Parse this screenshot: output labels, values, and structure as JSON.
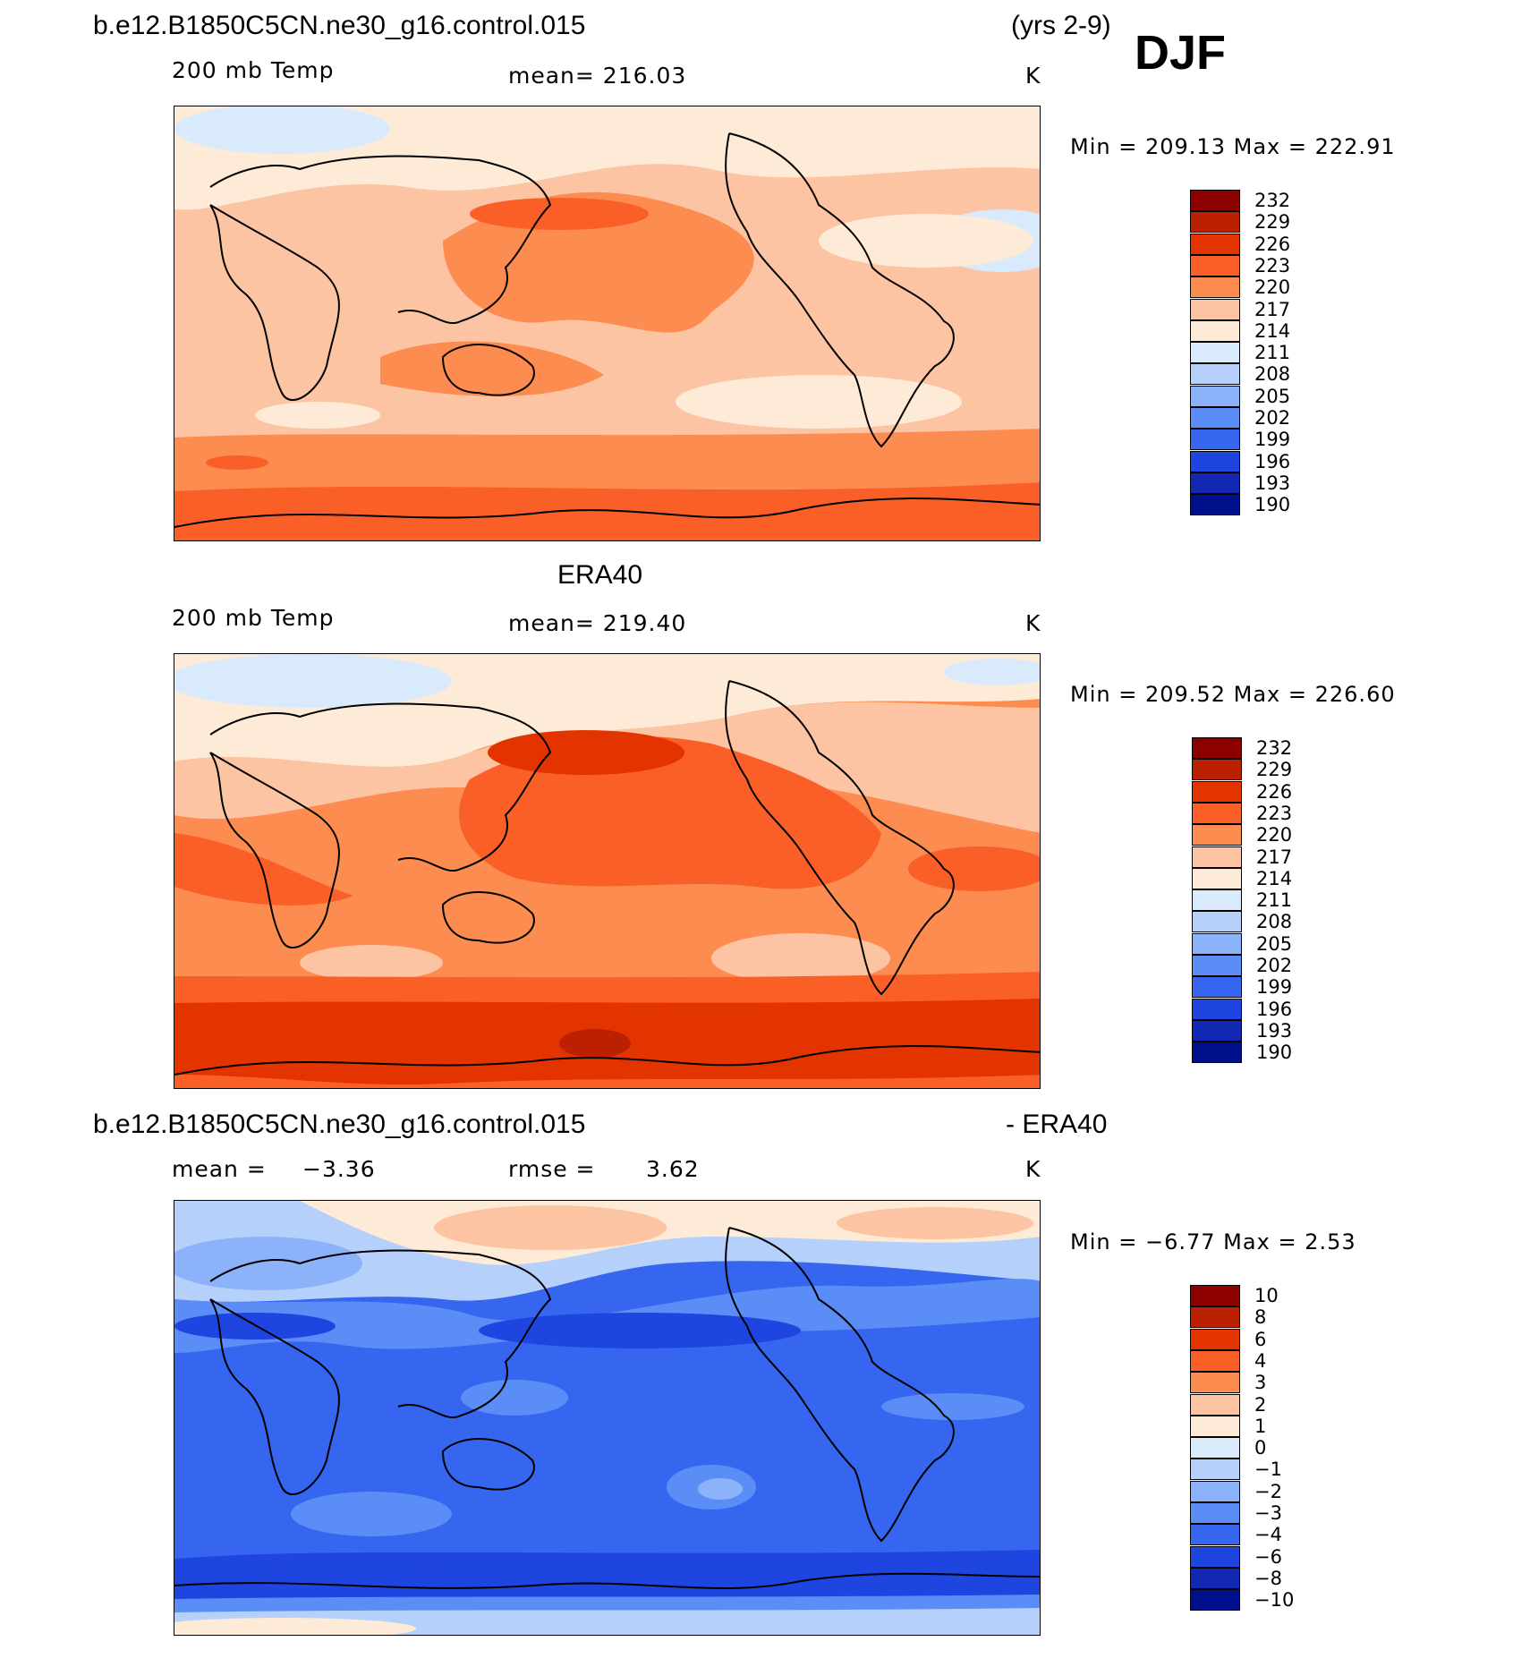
{
  "header": {
    "case_name": "b.e12.B1850C5CN.ne30_g16.control.015",
    "years": "(yrs 2-9)",
    "season": "DJF"
  },
  "panels": [
    {
      "id": "model",
      "title": "",
      "field_label": "200 mb Temp",
      "stat_text": "mean= 216.03",
      "units": "K",
      "min_label": "Min",
      "min_value": "209.13",
      "max_label": "Max",
      "max_value": "222.91",
      "colorbar": {
        "colors": [
          "#8c0000",
          "#bb2000",
          "#e33400",
          "#fa5f28",
          "#fd8c50",
          "#fdc4a3",
          "#fdebd8",
          "#d9eafc",
          "#b5d1fb",
          "#8cb3fa",
          "#5a8df5",
          "#3666ef",
          "#1f45e0",
          "#1227b2",
          "#000f8c"
        ],
        "tick_labels": [
          "232",
          "229",
          "226",
          "223",
          "220",
          "217",
          "214",
          "211",
          "208",
          "205",
          "202",
          "199",
          "196",
          "193",
          "190"
        ]
      },
      "fill_colors": {
        "background": "#fdc4a3",
        "warm": "#fd8c50",
        "warmer": "#fa5f28",
        "cool": "#fdebd8",
        "cold": "#d9eafc"
      }
    },
    {
      "id": "obs",
      "title": "ERA40",
      "field_label": "200 mb Temp",
      "stat_text": "mean= 219.40",
      "units": "K",
      "min_label": "Min",
      "min_value": "209.52",
      "max_label": "Max",
      "max_value": "226.60",
      "colorbar": {
        "colors": [
          "#8c0000",
          "#bb2000",
          "#e33400",
          "#fa5f28",
          "#fd8c50",
          "#fdc4a3",
          "#fdebd8",
          "#d9eafc",
          "#b5d1fb",
          "#8cb3fa",
          "#5a8df5",
          "#3666ef",
          "#1f45e0",
          "#1227b2",
          "#000f8c"
        ],
        "tick_labels": [
          "232",
          "229",
          "226",
          "223",
          "220",
          "217",
          "214",
          "211",
          "208",
          "205",
          "202",
          "199",
          "196",
          "193",
          "190"
        ]
      },
      "fill_colors": {
        "background": "#fd8c50",
        "warm": "#fa5f28",
        "warmer": "#e33400",
        "cool": "#fdebd8",
        "cold": "#d9eafc"
      }
    },
    {
      "id": "diff",
      "title_left": "b.e12.B1850C5CN.ne30_g16.control.015",
      "title_right": "- ERA40",
      "stat_mean_label": "mean =",
      "stat_mean_value": "−3.36",
      "stat_rmse_label": "rmse =",
      "stat_rmse_value": "3.62",
      "units": "K",
      "min_label": "Min",
      "min_value": "−6.77",
      "max_label": "Max",
      "max_value": "2.53",
      "colorbar": {
        "colors": [
          "#8c0000",
          "#bb2000",
          "#e33400",
          "#fa5f28",
          "#fd8c50",
          "#fdc4a3",
          "#fdebd8",
          "#d9eafc",
          "#b5d1fb",
          "#8cb3fa",
          "#5a8df5",
          "#3666ef",
          "#1f45e0",
          "#1227b2",
          "#000f8c"
        ],
        "tick_labels": [
          "10",
          "8",
          "6",
          "4",
          "3",
          "2",
          "1",
          "0",
          "−1",
          "−2",
          "−3",
          "−4",
          "−6",
          "−8",
          "−10"
        ]
      },
      "fill_colors": {
        "background": "#3666ef",
        "lighter": "#5a8df5",
        "light": "#8cb3fa",
        "pale": "#b5d1fb",
        "darker": "#1f45e0",
        "warm": "#fdc4a3",
        "cool": "#fdebd8"
      }
    }
  ]
}
